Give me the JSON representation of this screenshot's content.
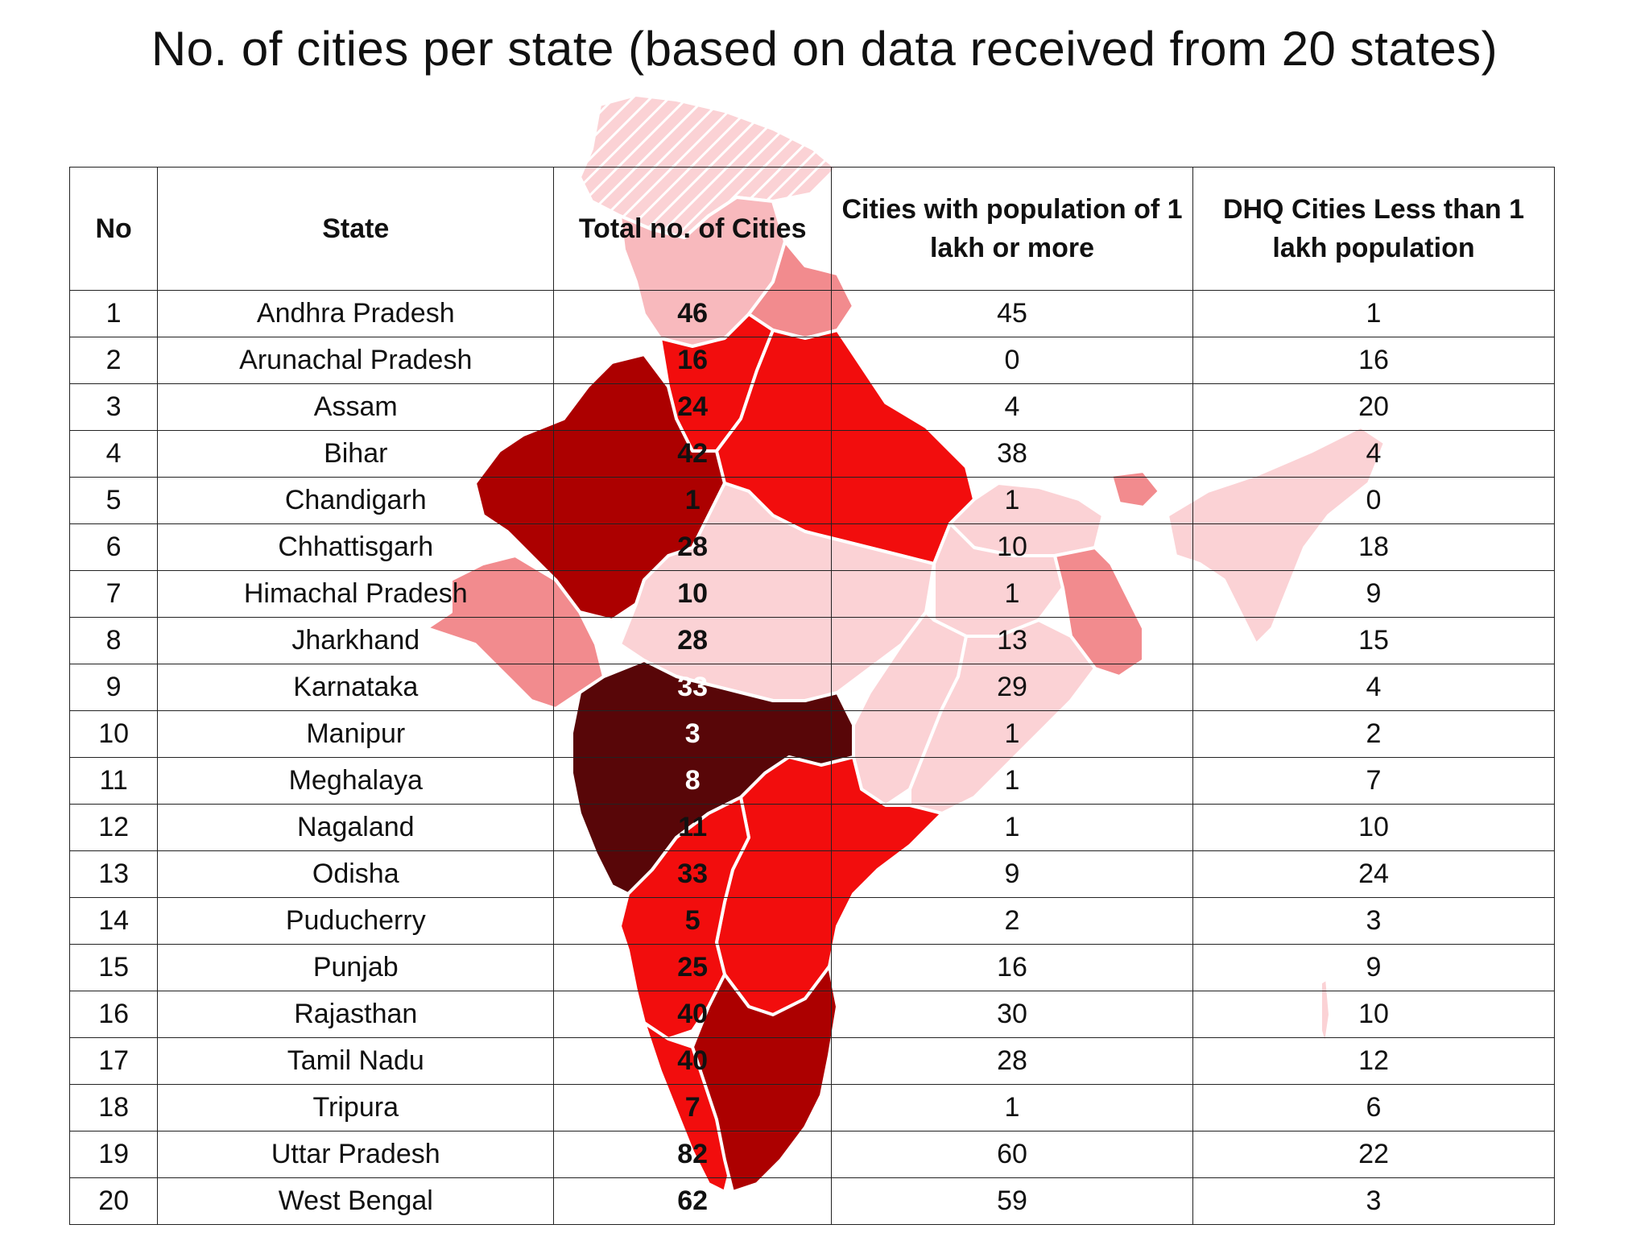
{
  "title": "No. of cities per state (based on data received from 20 states)",
  "columns": {
    "no": "No",
    "state": "State",
    "total": "Total no. of Cities",
    "pop_1lakh": "Cities with population of 1 lakh or more",
    "dhq_less": "DHQ Cities Less than 1 lakh population"
  },
  "rows": [
    {
      "no": "1",
      "state": "Andhra Pradesh",
      "total": "46",
      "pop_1lakh": "45",
      "dhq_less": "1"
    },
    {
      "no": "2",
      "state": "Arunachal Pradesh",
      "total": "16",
      "pop_1lakh": "0",
      "dhq_less": "16"
    },
    {
      "no": "3",
      "state": "Assam",
      "total": "24",
      "pop_1lakh": "4",
      "dhq_less": "20"
    },
    {
      "no": "4",
      "state": "Bihar",
      "total": "42",
      "pop_1lakh": "38",
      "dhq_less": "4"
    },
    {
      "no": "5",
      "state": "Chandigarh",
      "total": "1",
      "pop_1lakh": "1",
      "dhq_less": "0"
    },
    {
      "no": "6",
      "state": "Chhattisgarh",
      "total": "28",
      "pop_1lakh": "10",
      "dhq_less": "18"
    },
    {
      "no": "7",
      "state": "Himachal Pradesh",
      "total": "10",
      "pop_1lakh": "1",
      "dhq_less": "9"
    },
    {
      "no": "8",
      "state": "Jharkhand",
      "total": "28",
      "pop_1lakh": "13",
      "dhq_less": "15"
    },
    {
      "no": "9",
      "state": "Karnataka",
      "total": "33",
      "pop_1lakh": "29",
      "dhq_less": "4"
    },
    {
      "no": "10",
      "state": "Manipur",
      "total": "3",
      "pop_1lakh": "1",
      "dhq_less": "2"
    },
    {
      "no": "11",
      "state": "Meghalaya",
      "total": "8",
      "pop_1lakh": "1",
      "dhq_less": "7"
    },
    {
      "no": "12",
      "state": "Nagaland",
      "total": "11",
      "pop_1lakh": "1",
      "dhq_less": "10"
    },
    {
      "no": "13",
      "state": "Odisha",
      "total": "33",
      "pop_1lakh": "9",
      "dhq_less": "24"
    },
    {
      "no": "14",
      "state": "Puducherry",
      "total": "5",
      "pop_1lakh": "2",
      "dhq_less": "3"
    },
    {
      "no": "15",
      "state": "Punjab",
      "total": "25",
      "pop_1lakh": "16",
      "dhq_less": "9"
    },
    {
      "no": "16",
      "state": "Rajasthan",
      "total": "40",
      "pop_1lakh": "30",
      "dhq_less": "10"
    },
    {
      "no": "17",
      "state": "Tamil Nadu",
      "total": "40",
      "pop_1lakh": "28",
      "dhq_less": "12"
    },
    {
      "no": "18",
      "state": "Tripura",
      "total": "7",
      "pop_1lakh": "1",
      "dhq_less": "6"
    },
    {
      "no": "19",
      "state": "Uttar Pradesh",
      "total": "82",
      "pop_1lakh": "60",
      "dhq_less": "22"
    },
    {
      "no": "20",
      "state": "West Bengal",
      "total": "62",
      "pop_1lakh": "59",
      "dhq_less": "3"
    }
  ],
  "map_colors": {
    "lightest": "#fbd2d5",
    "light": "#f8b9bd",
    "medium": "#f28b8e",
    "bright": "#f20d0d",
    "dark": "#ac0000",
    "darkest": "#580608",
    "border": "#ffffff"
  }
}
